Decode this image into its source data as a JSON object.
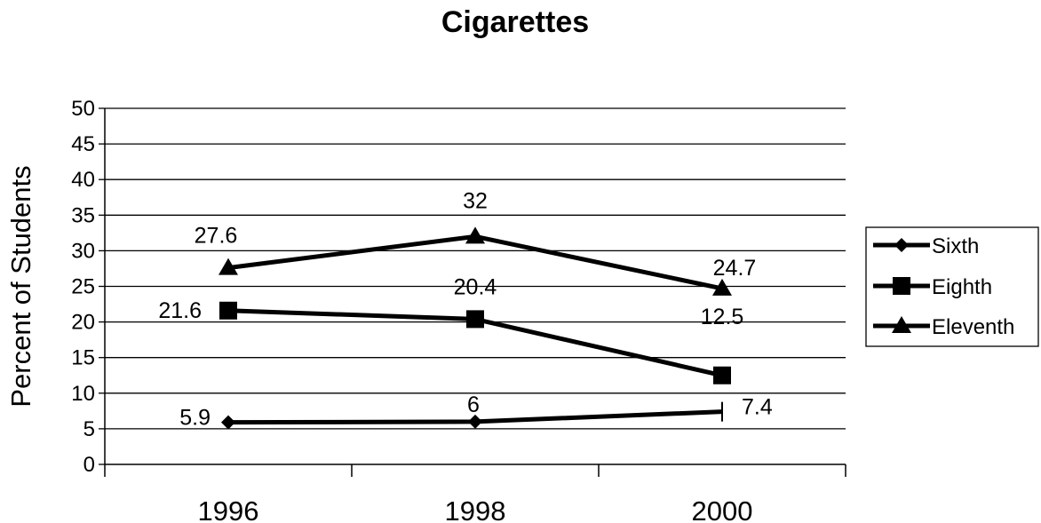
{
  "chart_data": {
    "type": "line",
    "title": "Cigarettes",
    "xlabel": "",
    "ylabel": "Percent of Students",
    "categories": [
      "1996",
      "1998",
      "2000"
    ],
    "ylim": [
      0,
      50
    ],
    "yticks": [
      "0",
      "5",
      "10",
      "15",
      "20",
      "25",
      "30",
      "35",
      "40",
      "45",
      "50"
    ],
    "grid": true,
    "legend": "right",
    "series": [
      {
        "name": "Sixth",
        "marker": "diamond",
        "values": [
          5.9,
          6,
          7.4
        ],
        "labels": [
          "5.9",
          "6",
          "7.4"
        ]
      },
      {
        "name": "Eighth",
        "marker": "square",
        "values": [
          21.6,
          20.4,
          12.5
        ],
        "labels": [
          "21.6",
          "20.4",
          "12.5"
        ]
      },
      {
        "name": "Eleventh",
        "marker": "triangle",
        "values": [
          27.6,
          32,
          24.7
        ],
        "labels": [
          "27.6",
          "32",
          "24.7"
        ]
      }
    ],
    "colors": {
      "line": "#000000",
      "grid": "#000000",
      "background": "#ffffff"
    }
  }
}
